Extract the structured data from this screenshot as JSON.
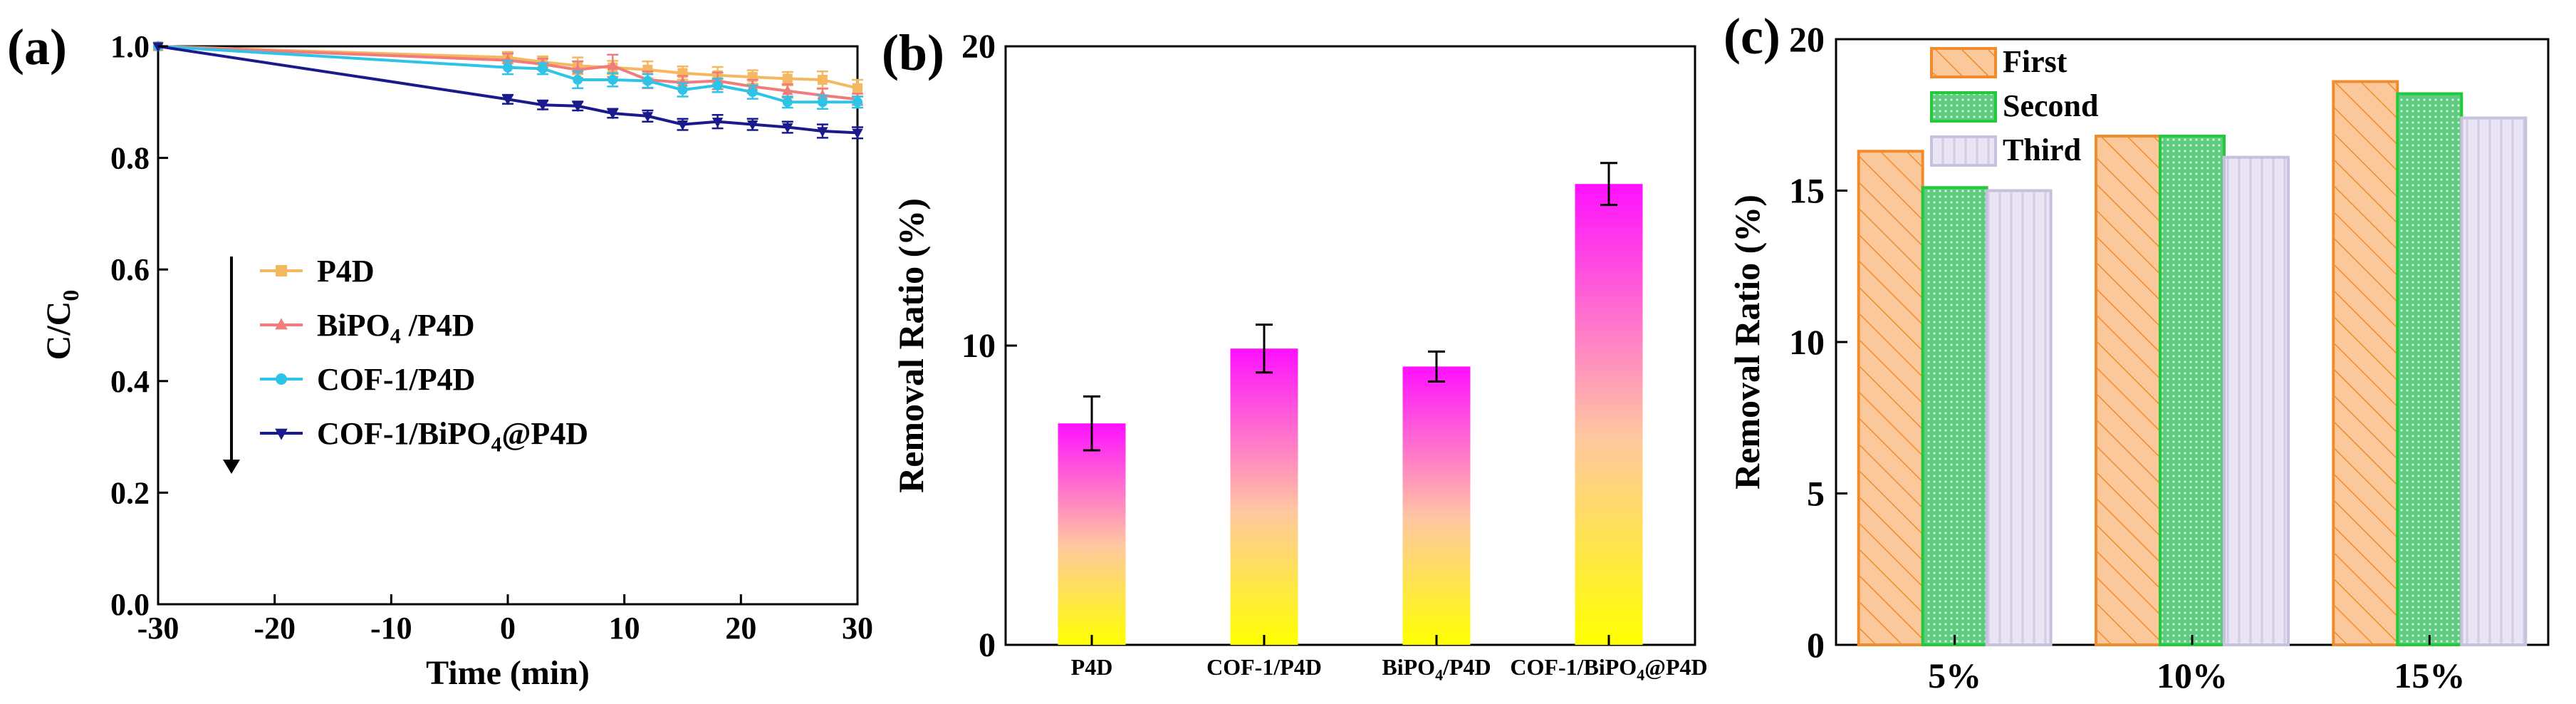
{
  "chart_data": [
    {
      "panel": "(a)",
      "type": "line",
      "title": "",
      "xlabel": "Time (min)",
      "ylabel_main": "C/C",
      "ylabel_sub": "0",
      "xlim": [
        -30,
        30
      ],
      "ylim": [
        0.0,
        1.0
      ],
      "xticks": [
        "-30",
        "-20",
        "-10",
        "0",
        "10",
        "20",
        "30"
      ],
      "yticks": [
        "0.0",
        "0.2",
        "0.4",
        "0.6",
        "0.8",
        "1.0"
      ],
      "legend_position": "center-left",
      "series": [
        {
          "name": "P4D",
          "legend_parts": [
            {
              "t": "P4D",
              "sub": ""
            }
          ],
          "color": "#F5B860",
          "marker": "square",
          "x": [
            -30,
            0,
            3,
            6,
            9,
            12,
            15,
            18,
            21,
            24,
            27,
            30
          ],
          "y": [
            1.0,
            0.98,
            0.972,
            0.965,
            0.962,
            0.958,
            0.952,
            0.948,
            0.945,
            0.942,
            0.94,
            0.925
          ],
          "err": [
            0,
            0.01,
            0.01,
            0.015,
            0.012,
            0.015,
            0.012,
            0.015,
            0.012,
            0.012,
            0.015,
            0.015
          ]
        },
        {
          "name": "BiPO4 /P4D",
          "legend_parts": [
            {
              "t": "BiPO",
              "sub": "4"
            },
            {
              "t": " /P4D",
              "sub": ""
            }
          ],
          "color": "#F07C7C",
          "marker": "triangle-up",
          "x": [
            -30,
            0,
            3,
            6,
            9,
            12,
            15,
            18,
            21,
            24,
            27,
            30
          ],
          "y": [
            1.0,
            0.975,
            0.968,
            0.958,
            0.965,
            0.94,
            0.935,
            0.938,
            0.928,
            0.92,
            0.912,
            0.905
          ],
          "err": [
            0,
            0.012,
            0.01,
            0.015,
            0.02,
            0.015,
            0.012,
            0.015,
            0.012,
            0.012,
            0.012,
            0.01
          ]
        },
        {
          "name": "COF-1/P4D",
          "legend_parts": [
            {
              "t": "COF-1/P4D",
              "sub": ""
            }
          ],
          "color": "#2EC4E8",
          "marker": "circle",
          "x": [
            -30,
            0,
            3,
            6,
            9,
            12,
            15,
            18,
            21,
            24,
            27,
            30
          ],
          "y": [
            1.0,
            0.962,
            0.96,
            0.94,
            0.94,
            0.938,
            0.922,
            0.93,
            0.918,
            0.9,
            0.9,
            0.9
          ],
          "err": [
            0,
            0.012,
            0.01,
            0.015,
            0.012,
            0.012,
            0.012,
            0.012,
            0.012,
            0.01,
            0.012,
            0.01
          ]
        },
        {
          "name": "COF-1/BiPO4@P4D",
          "legend_parts": [
            {
              "t": "COF-1/BiPO",
              "sub": "4"
            },
            {
              "t": "@P4D",
              "sub": ""
            }
          ],
          "color": "#1A1A8C",
          "marker": "triangle-down",
          "x": [
            -30,
            0,
            3,
            6,
            9,
            12,
            15,
            18,
            21,
            24,
            27,
            30
          ],
          "y": [
            1.0,
            0.905,
            0.895,
            0.893,
            0.88,
            0.875,
            0.86,
            0.865,
            0.86,
            0.855,
            0.848,
            0.845
          ],
          "err": [
            0,
            0.008,
            0.008,
            0.008,
            0.008,
            0.01,
            0.01,
            0.012,
            0.01,
            0.01,
            0.012,
            0.01
          ]
        }
      ]
    },
    {
      "panel": "(b)",
      "type": "bar",
      "title": "",
      "xlabel": "",
      "ylabel": "Removal Ratio (%)",
      "ylim": [
        0,
        20
      ],
      "yticks": [
        "0",
        "10",
        "20"
      ],
      "categories": [
        "P4D",
        "COF-1/P4D",
        "BiPO4/P4D",
        "COF-1/BiPO4@P4D"
      ],
      "category_parts": [
        [
          {
            "t": "P4D",
            "sub": ""
          }
        ],
        [
          {
            "t": "COF-1/P4D",
            "sub": ""
          }
        ],
        [
          {
            "t": "BiPO",
            "sub": "4"
          },
          {
            "t": "/P4D",
            "sub": ""
          }
        ],
        [
          {
            "t": "COF-1/BiPO",
            "sub": "4"
          },
          {
            "t": "@P4D",
            "sub": ""
          }
        ]
      ],
      "values": [
        7.4,
        9.9,
        9.3,
        15.4
      ],
      "errors": [
        0.9,
        0.8,
        0.5,
        0.7
      ],
      "bar_gradient": [
        "#FF10FF",
        "#FFFF00"
      ]
    },
    {
      "panel": "(c)",
      "type": "bar",
      "title": "",
      "xlabel": "",
      "ylabel": "Removal Ratio (%)",
      "ylim": [
        0,
        20
      ],
      "yticks": [
        "0",
        "5",
        "10",
        "15",
        "20"
      ],
      "categories": [
        "5%",
        "10%",
        "15%"
      ],
      "legend_position": "top-left",
      "series": [
        {
          "name": "First",
          "values": [
            16.3,
            16.8,
            18.6
          ],
          "fill": "#FAC89A",
          "stroke": "#F08C2C",
          "pattern": "hatch"
        },
        {
          "name": "Second",
          "values": [
            15.1,
            16.8,
            18.2
          ],
          "fill": "#7FD89A",
          "stroke": "#22C93A",
          "pattern": "dots"
        },
        {
          "name": "Third",
          "values": [
            15.0,
            16.1,
            17.4
          ],
          "fill": "#E6E2F2",
          "stroke": "#C7C0DE",
          "pattern": "vlines"
        }
      ]
    }
  ]
}
